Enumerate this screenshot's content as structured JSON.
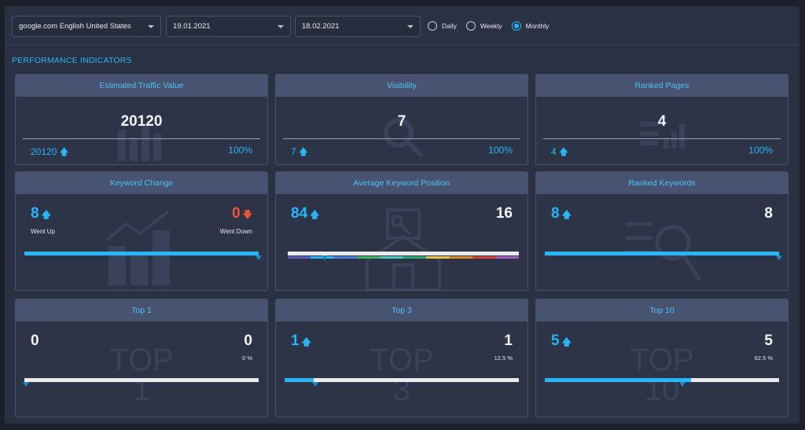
{
  "toolbar": {
    "site": "google.com English United States",
    "date_start": "19.01.2021",
    "date_end": "18.02.2021",
    "radio_daily": "Daily",
    "radio_weekly": "Weekly",
    "radio_monthly": "Monthly",
    "selected_period": "Monthly"
  },
  "section_title": "PERFORMANCE INDICATORS",
  "colors": {
    "accent": "#29b6f6",
    "down": "#ef5336",
    "card_header": "#485271"
  },
  "cards": {
    "traffic": {
      "title": "Estimated Traffic Value",
      "value": "20120",
      "left": "20120",
      "right": "100%"
    },
    "visibility": {
      "title": "Visibility",
      "value": "7",
      "left": "7",
      "right": "100%"
    },
    "ranked_pages": {
      "title": "Ranked Pages",
      "value": "4",
      "left": "4",
      "right": "100%"
    },
    "keyword_change": {
      "title": "Keyword Change",
      "up": "8",
      "up_label": "Went Up",
      "down": "0",
      "down_label": "Went Down",
      "fill": 1.0
    },
    "avg_position": {
      "title": "Average Keyword Position",
      "left": "84",
      "right": "16",
      "marker": 0.16
    },
    "ranked_keywords": {
      "title": "Ranked Keywords",
      "left": "8",
      "right": "8",
      "fill": 1.0
    },
    "top1": {
      "title": "Top 1",
      "left": "0",
      "right": "0",
      "pct": "0 %",
      "wm1": "TOP",
      "wm2": "1",
      "fill": 0.0
    },
    "top3": {
      "title": "Top 3",
      "left": "1",
      "right": "1",
      "pct": "12.5 %",
      "wm1": "TOP",
      "wm2": "3",
      "fill": 0.125
    },
    "top10": {
      "title": "Top 10",
      "left": "5",
      "right": "5",
      "pct": "62.5 %",
      "wm1": "TOP",
      "wm2": "10",
      "fill": 0.625
    }
  },
  "icons": {
    "arrow_up": "arrow-up-icon",
    "arrow_down": "arrow-down-icon",
    "caret": "chevron-down-icon"
  }
}
